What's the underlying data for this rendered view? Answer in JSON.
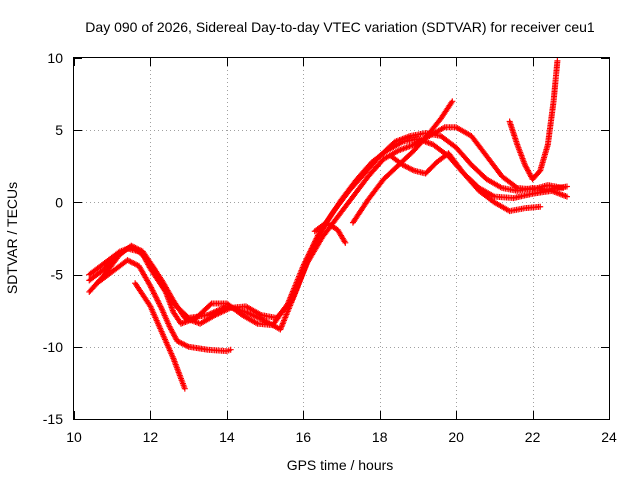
{
  "chart_data": {
    "type": "scatter",
    "title": "Day 090 of 2026, Sidereal Day-to-day VTEC variation (SDTVAR) for receiver ceu1",
    "xlabel": "GPS time / hours",
    "ylabel": "SDTVAR / TECUs",
    "xlim": [
      10,
      24
    ],
    "ylim": [
      -15,
      10
    ],
    "xticks": [
      10,
      12,
      14,
      16,
      18,
      20,
      22,
      24
    ],
    "yticks": [
      -15,
      -10,
      -5,
      0,
      5,
      10
    ],
    "x_tick_labels": [
      "10",
      "12",
      "14",
      "16",
      "18",
      "20",
      "22",
      "24"
    ],
    "y_tick_labels": [
      "-15",
      "-10",
      "-5",
      "0",
      "5",
      "10"
    ],
    "grid": true,
    "marker": "+",
    "color": "#ff0000",
    "series": [
      {
        "name": "trace-1",
        "points": [
          [
            10.4,
            -5.0
          ],
          [
            10.8,
            -4.2
          ],
          [
            11.2,
            -3.4
          ],
          [
            11.5,
            -3.1
          ],
          [
            11.8,
            -3.6
          ],
          [
            12.0,
            -4.6
          ],
          [
            12.3,
            -5.8
          ],
          [
            12.6,
            -7.0
          ],
          [
            13.0,
            -8.0
          ],
          [
            13.5,
            -7.8
          ],
          [
            14.0,
            -7.2
          ],
          [
            14.5,
            -7.6
          ],
          [
            15.0,
            -8.2
          ],
          [
            15.4,
            -8.8
          ],
          [
            15.8,
            -6.2
          ],
          [
            16.2,
            -3.4
          ],
          [
            16.6,
            -1.4
          ],
          [
            17.0,
            0.2
          ],
          [
            17.4,
            1.6
          ],
          [
            17.8,
            2.8
          ],
          [
            18.2,
            3.6
          ],
          [
            18.6,
            4.2
          ],
          [
            19.0,
            4.4
          ],
          [
            19.4,
            4.0
          ],
          [
            19.8,
            3.2
          ],
          [
            20.2,
            2.0
          ],
          [
            20.6,
            1.0
          ],
          [
            21.0,
            0.4
          ],
          [
            21.5,
            0.3
          ],
          [
            22.0,
            0.6
          ],
          [
            22.5,
            0.8
          ],
          [
            22.9,
            0.4
          ]
        ]
      },
      {
        "name": "trace-2",
        "points": [
          [
            10.4,
            -6.2
          ],
          [
            10.8,
            -5.0
          ],
          [
            11.2,
            -3.6
          ],
          [
            11.5,
            -3.0
          ],
          [
            11.8,
            -3.4
          ],
          [
            12.1,
            -4.6
          ],
          [
            12.4,
            -6.2
          ],
          [
            12.6,
            -7.6
          ],
          [
            12.8,
            -8.4
          ],
          [
            13.2,
            -8.0
          ],
          [
            13.6,
            -7.0
          ],
          [
            14.0,
            -7.0
          ],
          [
            14.4,
            -7.8
          ],
          [
            14.8,
            -8.4
          ],
          [
            15.2,
            -8.5
          ],
          [
            15.6,
            -7.0
          ],
          [
            16.0,
            -4.4
          ],
          [
            16.4,
            -2.2
          ],
          [
            16.8,
            -0.6
          ],
          [
            17.2,
            0.8
          ],
          [
            17.6,
            2.0
          ],
          [
            18.0,
            3.2
          ],
          [
            18.4,
            4.2
          ],
          [
            18.8,
            4.6
          ],
          [
            19.2,
            4.8
          ],
          [
            19.6,
            4.6
          ],
          [
            20.0,
            3.8
          ],
          [
            20.4,
            2.6
          ],
          [
            20.8,
            1.6
          ],
          [
            21.2,
            1.0
          ],
          [
            21.6,
            0.8
          ],
          [
            22.0,
            1.0
          ],
          [
            22.4,
            0.9
          ],
          [
            22.9,
            1.1
          ]
        ]
      },
      {
        "name": "trace-3",
        "points": [
          [
            10.4,
            -5.4
          ],
          [
            10.8,
            -4.6
          ],
          [
            11.1,
            -3.8
          ],
          [
            11.4,
            -3.2
          ],
          [
            11.7,
            -3.4
          ],
          [
            12.0,
            -4.2
          ],
          [
            12.3,
            -5.4
          ],
          [
            12.6,
            -6.8
          ],
          [
            12.9,
            -8.0
          ],
          [
            13.3,
            -8.4
          ],
          [
            13.7,
            -7.8
          ],
          [
            14.1,
            -7.3
          ],
          [
            14.5,
            -7.2
          ],
          [
            14.9,
            -7.8
          ],
          [
            15.3,
            -8.0
          ],
          [
            15.7,
            -6.8
          ],
          [
            16.1,
            -4.2
          ],
          [
            16.5,
            -2.4
          ],
          [
            16.9,
            -1.0
          ],
          [
            17.3,
            0.4
          ],
          [
            17.7,
            1.8
          ],
          [
            18.1,
            3.0
          ],
          [
            18.5,
            3.6
          ],
          [
            18.9,
            4.0
          ],
          [
            19.3,
            4.6
          ],
          [
            19.7,
            5.2
          ],
          [
            20.0,
            5.2
          ],
          [
            20.4,
            4.6
          ],
          [
            20.8,
            3.2
          ],
          [
            21.2,
            1.8
          ],
          [
            21.6,
            1.0
          ],
          [
            22.0,
            0.9
          ],
          [
            22.4,
            1.2
          ],
          [
            22.8,
            1.0
          ]
        ]
      },
      {
        "name": "trace-4",
        "points": [
          [
            10.6,
            -5.6
          ],
          [
            11.0,
            -4.8
          ],
          [
            11.4,
            -4.0
          ],
          [
            11.7,
            -4.4
          ],
          [
            12.0,
            -5.8
          ],
          [
            12.3,
            -7.4
          ],
          [
            12.5,
            -8.6
          ],
          [
            12.7,
            -9.6
          ],
          [
            13.0,
            -10.0
          ],
          [
            13.5,
            -10.2
          ],
          [
            14.0,
            -10.3
          ],
          [
            14.1,
            -10.2
          ]
        ]
      },
      {
        "name": "trace-5",
        "points": [
          [
            11.6,
            -5.6
          ],
          [
            11.8,
            -6.4
          ],
          [
            12.0,
            -7.2
          ],
          [
            12.2,
            -8.4
          ],
          [
            12.4,
            -9.6
          ],
          [
            12.6,
            -10.8
          ],
          [
            12.8,
            -12.2
          ],
          [
            12.9,
            -12.9
          ]
        ]
      },
      {
        "name": "trace-6",
        "points": [
          [
            17.3,
            -1.4
          ],
          [
            17.7,
            0.2
          ],
          [
            18.1,
            1.6
          ],
          [
            18.5,
            2.6
          ],
          [
            18.9,
            3.6
          ],
          [
            19.3,
            4.8
          ],
          [
            19.6,
            5.8
          ],
          [
            19.9,
            7.0
          ]
        ]
      },
      {
        "name": "trace-7",
        "points": [
          [
            18.3,
            3.2
          ],
          [
            18.6,
            2.6
          ],
          [
            18.9,
            2.2
          ],
          [
            19.2,
            2.0
          ],
          [
            19.5,
            2.8
          ],
          [
            19.8,
            3.4
          ],
          [
            20.2,
            2.0
          ],
          [
            20.6,
            0.8
          ],
          [
            21.0,
            0.0
          ],
          [
            21.4,
            -0.6
          ],
          [
            21.8,
            -0.4
          ],
          [
            22.2,
            -0.3
          ]
        ]
      },
      {
        "name": "trace-8",
        "points": [
          [
            16.3,
            -2.0
          ],
          [
            16.6,
            -1.4
          ],
          [
            16.9,
            -1.9
          ],
          [
            17.1,
            -2.8
          ]
        ]
      },
      {
        "name": "trace-9",
        "points": [
          [
            21.4,
            5.6
          ],
          [
            21.6,
            4.0
          ],
          [
            21.8,
            2.6
          ],
          [
            22.0,
            1.6
          ],
          [
            22.2,
            2.2
          ],
          [
            22.4,
            4.0
          ],
          [
            22.55,
            7.0
          ],
          [
            22.65,
            9.8
          ]
        ]
      }
    ]
  }
}
